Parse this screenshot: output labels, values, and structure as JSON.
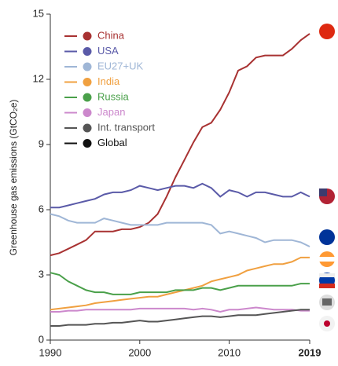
{
  "chart_data": {
    "type": "line",
    "ylabel": "Greenhouse gas emissions (GtCO₂e)",
    "x": [
      1990,
      1991,
      1992,
      1993,
      1994,
      1995,
      1996,
      1997,
      1998,
      1999,
      2000,
      2001,
      2002,
      2003,
      2004,
      2005,
      2006,
      2007,
      2008,
      2009,
      2010,
      2011,
      2012,
      2013,
      2014,
      2015,
      2016,
      2017,
      2018,
      2019
    ],
    "xlim": [
      1990,
      2019
    ],
    "xticks": [
      1990,
      2000,
      2010,
      2019
    ],
    "ylim": [
      0,
      15
    ],
    "yticks": [
      0,
      3,
      6,
      9,
      12,
      15
    ],
    "series": [
      {
        "name": "China",
        "color": "#a83232",
        "values": [
          3.9,
          4.0,
          4.2,
          4.4,
          4.6,
          5.0,
          5.0,
          5.0,
          5.1,
          5.1,
          5.2,
          5.4,
          5.8,
          6.6,
          7.5,
          8.3,
          9.1,
          9.8,
          10.0,
          10.6,
          11.4,
          12.4,
          12.6,
          13.0,
          13.1,
          13.1,
          13.1,
          13.4,
          13.8,
          14.1
        ]
      },
      {
        "name": "USA",
        "color": "#5a5aa8",
        "values": [
          6.1,
          6.1,
          6.2,
          6.3,
          6.4,
          6.5,
          6.7,
          6.8,
          6.8,
          6.9,
          7.1,
          7.0,
          6.9,
          7.0,
          7.1,
          7.1,
          7.0,
          7.2,
          7.0,
          6.6,
          6.9,
          6.8,
          6.6,
          6.8,
          6.8,
          6.7,
          6.6,
          6.6,
          6.8,
          6.6
        ]
      },
      {
        "name": "EU27+UK",
        "color": "#9fb6d6",
        "values": [
          5.8,
          5.7,
          5.5,
          5.4,
          5.4,
          5.4,
          5.6,
          5.5,
          5.4,
          5.3,
          5.3,
          5.3,
          5.3,
          5.4,
          5.4,
          5.4,
          5.4,
          5.4,
          5.3,
          4.9,
          5.0,
          4.9,
          4.8,
          4.7,
          4.5,
          4.6,
          4.6,
          4.6,
          4.5,
          4.3
        ]
      },
      {
        "name": "India",
        "color": "#f0a040",
        "values": [
          1.4,
          1.45,
          1.5,
          1.55,
          1.6,
          1.7,
          1.75,
          1.8,
          1.85,
          1.9,
          1.95,
          2.0,
          2.0,
          2.1,
          2.2,
          2.3,
          2.4,
          2.5,
          2.7,
          2.8,
          2.9,
          3.0,
          3.2,
          3.3,
          3.4,
          3.5,
          3.5,
          3.6,
          3.8,
          3.8
        ]
      },
      {
        "name": "Russia",
        "color": "#4aa04a",
        "values": [
          3.1,
          3.0,
          2.7,
          2.5,
          2.3,
          2.2,
          2.2,
          2.1,
          2.1,
          2.1,
          2.2,
          2.2,
          2.2,
          2.2,
          2.3,
          2.3,
          2.3,
          2.4,
          2.4,
          2.3,
          2.4,
          2.5,
          2.5,
          2.5,
          2.5,
          2.5,
          2.5,
          2.5,
          2.6,
          2.6
        ]
      },
      {
        "name": "Japan",
        "color": "#cc88cc",
        "values": [
          1.3,
          1.3,
          1.35,
          1.35,
          1.4,
          1.4,
          1.4,
          1.4,
          1.4,
          1.4,
          1.45,
          1.45,
          1.45,
          1.45,
          1.45,
          1.45,
          1.4,
          1.45,
          1.4,
          1.3,
          1.4,
          1.4,
          1.45,
          1.5,
          1.45,
          1.4,
          1.4,
          1.4,
          1.35,
          1.35
        ]
      },
      {
        "name": "Int. transport",
        "color": "#555555",
        "values": [
          0.65,
          0.65,
          0.7,
          0.7,
          0.7,
          0.75,
          0.75,
          0.8,
          0.8,
          0.85,
          0.9,
          0.85,
          0.85,
          0.9,
          0.95,
          1.0,
          1.05,
          1.1,
          1.1,
          1.05,
          1.1,
          1.15,
          1.15,
          1.15,
          1.2,
          1.25,
          1.3,
          1.35,
          1.4,
          1.4
        ]
      },
      {
        "name": "Global",
        "color": "#111111",
        "values": [
          null,
          null,
          null,
          null,
          null,
          null,
          null,
          null,
          null,
          null,
          null,
          null,
          null,
          null,
          null,
          null,
          null,
          null,
          null,
          null,
          null,
          null,
          null,
          null,
          null,
          null,
          null,
          null,
          null,
          null
        ]
      }
    ]
  }
}
